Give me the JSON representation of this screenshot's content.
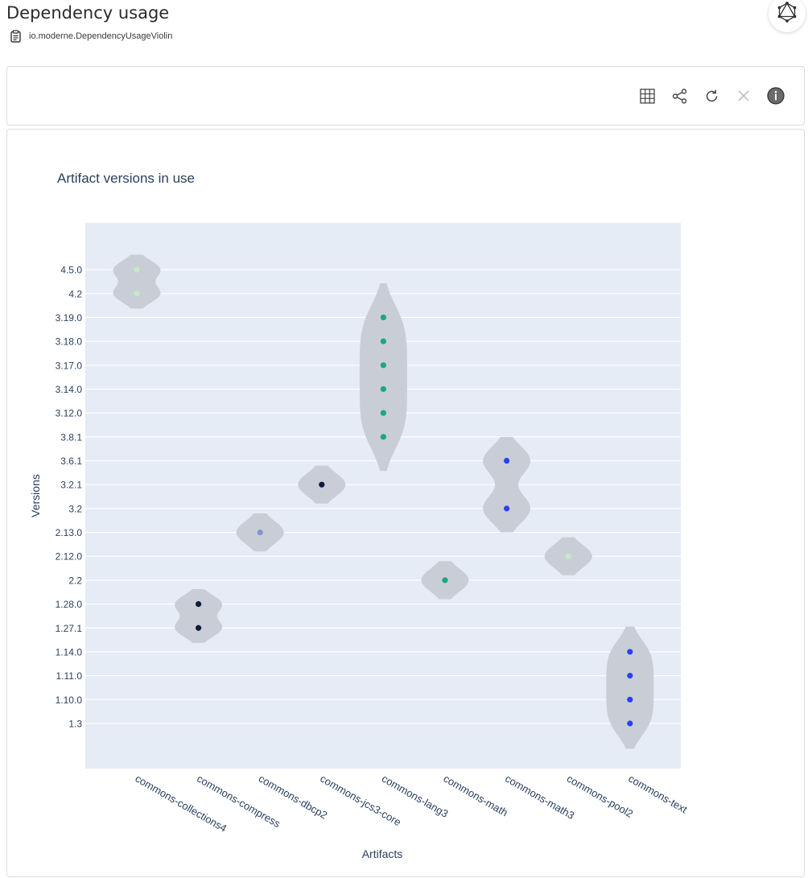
{
  "header": {
    "title": "Dependency usage",
    "recipe_id": "io.moderne.DependencyUsageViolin"
  },
  "icons": {
    "recipe": "clipboard-icon",
    "graphql": "graphql-icon",
    "table": "table-grid-icon",
    "share": "share-icon",
    "refresh": "refresh-icon",
    "close": "close-icon",
    "info": "info-icon"
  },
  "colors": {
    "plot_bg": "#e5ecf6",
    "violin_fill": "#c9ced6",
    "text": "#2a3f5f"
  },
  "chart_data": {
    "type": "violin",
    "title": "Artifact versions in use",
    "xlabel": "Artifacts",
    "ylabel": "Versions",
    "categories": [
      "commons-collections4",
      "commons-compress",
      "commons-dbcp2",
      "commons-jcs3-core",
      "commons-lang3",
      "commons-math",
      "commons-math3",
      "commons-pool2",
      "commons-text"
    ],
    "y_categories": [
      "1.3",
      "1.10.0",
      "1.11.0",
      "1.14.0",
      "1.27.1",
      "1.28.0",
      "2.2",
      "2.12.0",
      "2.13.0",
      "3.2",
      "3.2.1",
      "3.6.1",
      "3.8.1",
      "3.12.0",
      "3.14.0",
      "3.17.0",
      "3.18.0",
      "3.19.0",
      "4.2",
      "4.5.0"
    ],
    "series": [
      {
        "artifact": "commons-collections4",
        "versions": [
          "4.2",
          "4.5.0"
        ],
        "color": "#c7e9c0"
      },
      {
        "artifact": "commons-compress",
        "versions": [
          "1.27.1",
          "1.28.0"
        ],
        "color": "#0d1b3e"
      },
      {
        "artifact": "commons-dbcp2",
        "versions": [
          "2.13.0"
        ],
        "color": "#7f96cf"
      },
      {
        "artifact": "commons-jcs3-core",
        "versions": [
          "3.2.1"
        ],
        "color": "#0d1b3e"
      },
      {
        "artifact": "commons-lang3",
        "versions": [
          "3.8.1",
          "3.12.0",
          "3.14.0",
          "3.17.0",
          "3.18.0",
          "3.19.0"
        ],
        "color": "#1fa67a"
      },
      {
        "artifact": "commons-math",
        "versions": [
          "2.2"
        ],
        "color": "#1fa67a"
      },
      {
        "artifact": "commons-math3",
        "versions": [
          "3.2",
          "3.6.1"
        ],
        "color": "#2b3ff5"
      },
      {
        "artifact": "commons-pool2",
        "versions": [
          "2.12.0"
        ],
        "color": "#c7e9c0"
      },
      {
        "artifact": "commons-text",
        "versions": [
          "1.3",
          "1.10.0",
          "1.11.0",
          "1.14.0"
        ],
        "color": "#2b3ff5"
      }
    ],
    "grid": true,
    "legend": "none"
  }
}
